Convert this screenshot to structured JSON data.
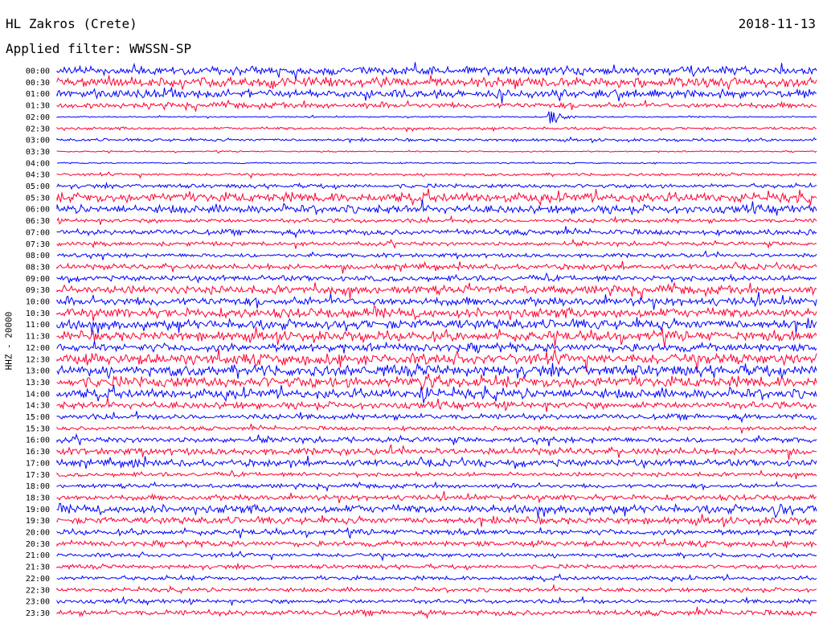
{
  "header": {
    "title": "HL Zakros (Crete)",
    "date": "2018-11-13",
    "filter_text": "Applied filter: WWSSN-SP"
  },
  "chart_data": {
    "type": "line",
    "title": "HL Zakros (Crete)",
    "ylabel": "HHZ - 20000",
    "xlabel": "",
    "grid": false,
    "legend": "none",
    "colors": [
      "#0000ff",
      "#ff0033"
    ],
    "tick_labels": [
      "00:00",
      "00:30",
      "01:00",
      "01:30",
      "02:00",
      "02:30",
      "03:00",
      "03:30",
      "04:00",
      "04:30",
      "05:00",
      "05:30",
      "06:00",
      "06:30",
      "07:00",
      "07:30",
      "08:00",
      "08:30",
      "09:00",
      "09:30",
      "10:00",
      "10:30",
      "11:00",
      "11:30",
      "12:00",
      "12:30",
      "13:00",
      "13:30",
      "14:00",
      "14:30",
      "15:00",
      "15:30",
      "16:00",
      "16:30",
      "17:00",
      "17:30",
      "18:00",
      "18:30",
      "19:00",
      "19:30",
      "20:00",
      "20:30",
      "21:00",
      "21:30",
      "22:00",
      "22:30",
      "23:00",
      "23:30"
    ],
    "noise_level": [
      6,
      7,
      6,
      4,
      1,
      2,
      2,
      1,
      1,
      2,
      3,
      7,
      6,
      3,
      4,
      3,
      3,
      4,
      4,
      6,
      6,
      7,
      7,
      7,
      6,
      8,
      8,
      8,
      7,
      5,
      4,
      3,
      4,
      5,
      5,
      3,
      3,
      4,
      6,
      5,
      4,
      4,
      3,
      3,
      3,
      3,
      3,
      4
    ],
    "events": [
      {
        "trace_time": "02:00",
        "minute": 19.5,
        "amplitude": 14
      },
      {
        "trace_time": "13:30",
        "minute": 14.5,
        "amplitude": 18
      },
      {
        "trace_time": "14:00",
        "minute": 14.5,
        "amplitude": 14
      },
      {
        "trace_time": "19:00",
        "minute": 28.5,
        "amplitude": 12
      },
      {
        "trace_time": "17:00",
        "minute": 3.0,
        "amplitude": 9
      }
    ]
  }
}
